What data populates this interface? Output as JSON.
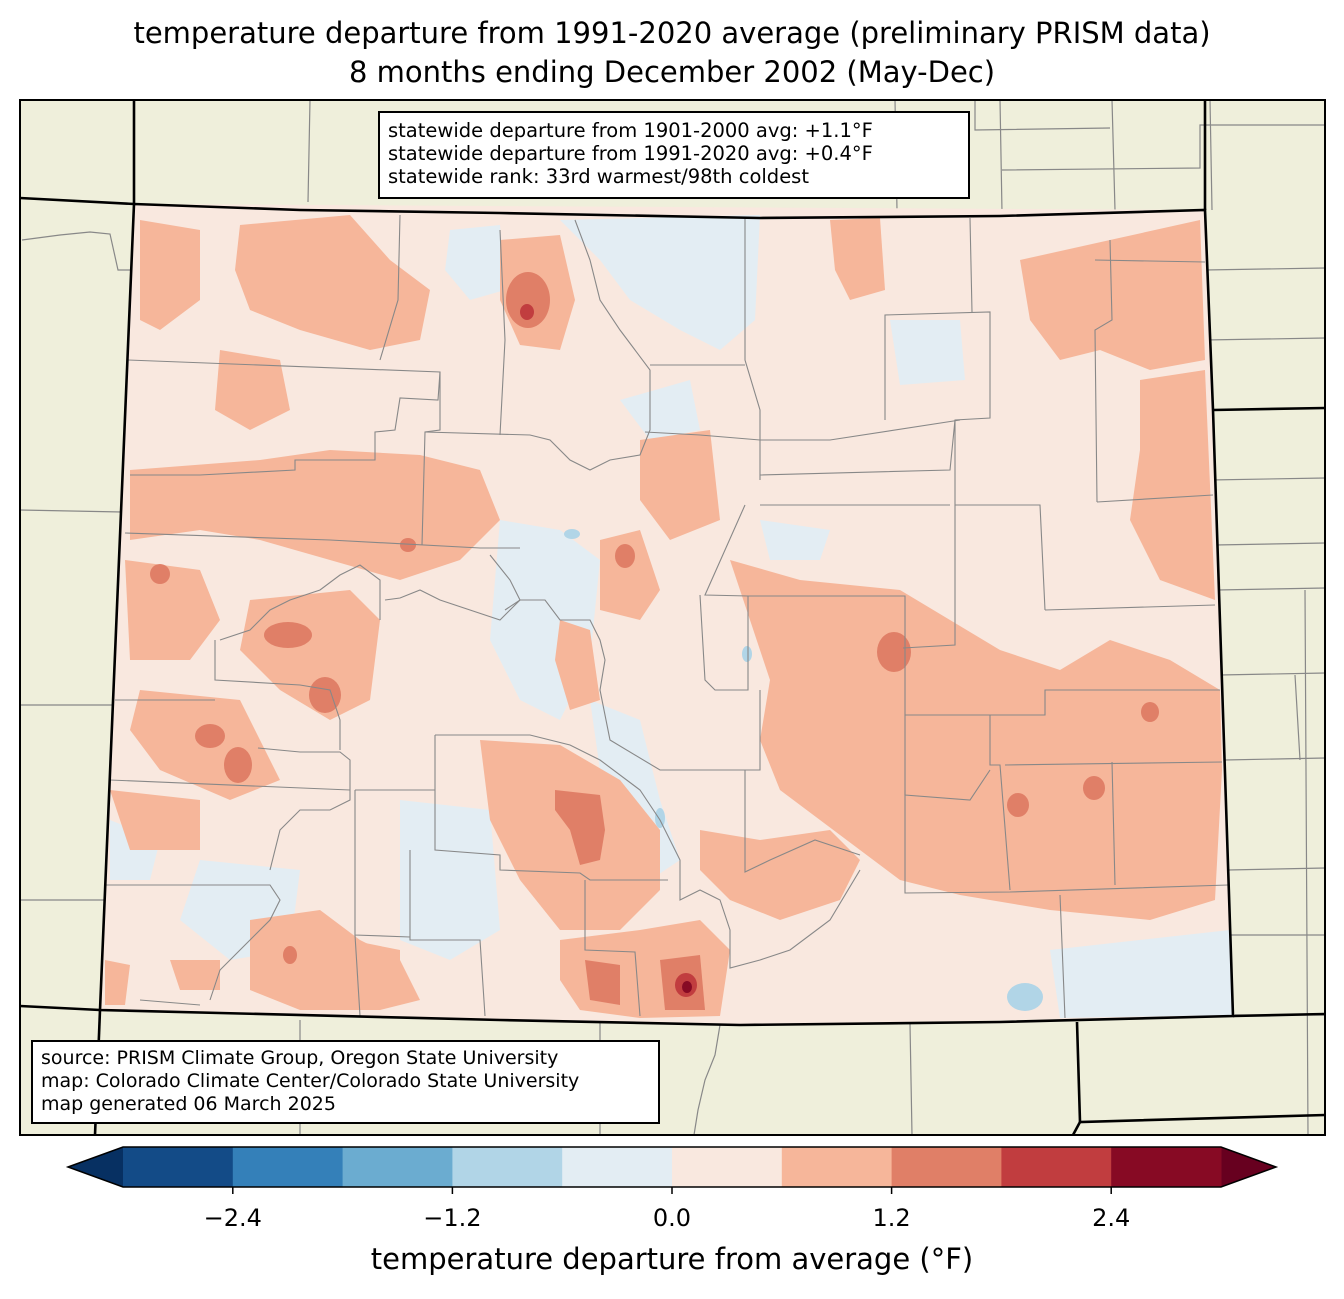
{
  "title_line1": "temperature departure from 1991-2020 average (preliminary PRISM data)",
  "title_line2": "8 months ending December 2002 (May-Dec)",
  "stats": {
    "line1": "statewide departure from 1901-2000 avg: +1.1°F",
    "line2": "statewide departure from 1991-2020 avg: +0.4°F",
    "line3": "statewide rank: 33rd warmest/98th coldest"
  },
  "credits": {
    "line1": "source: PRISM Climate Group, Oregon State University",
    "line2": "map: Colorado Climate Center/Colorado State University",
    "line3": "map generated 06 March 2025"
  },
  "colorbar": {
    "label": "temperature departure from average (°F)",
    "ticks": [
      "−2.4",
      "−1.2",
      "0.0",
      "1.2",
      "2.4"
    ],
    "tick_values": [
      -2.4,
      -1.2,
      0.0,
      1.2,
      2.4
    ],
    "bounds": [
      -3.0,
      -2.4,
      -1.8,
      -1.2,
      -0.6,
      0.0,
      0.6,
      1.2,
      1.8,
      2.4,
      3.0
    ],
    "colors": [
      "#134b87",
      "#3480b9",
      "#6bacd0",
      "#b1d5e7",
      "#e3edf3",
      "#f9e8df",
      "#f6b69a",
      "#e07f67",
      "#c13d3f",
      "#870a24"
    ],
    "under_color": "#073062",
    "over_color": "#67001f"
  },
  "colors": {
    "land_background": "#efefdb",
    "state_border": "#000000",
    "county_border": "#888888"
  }
}
